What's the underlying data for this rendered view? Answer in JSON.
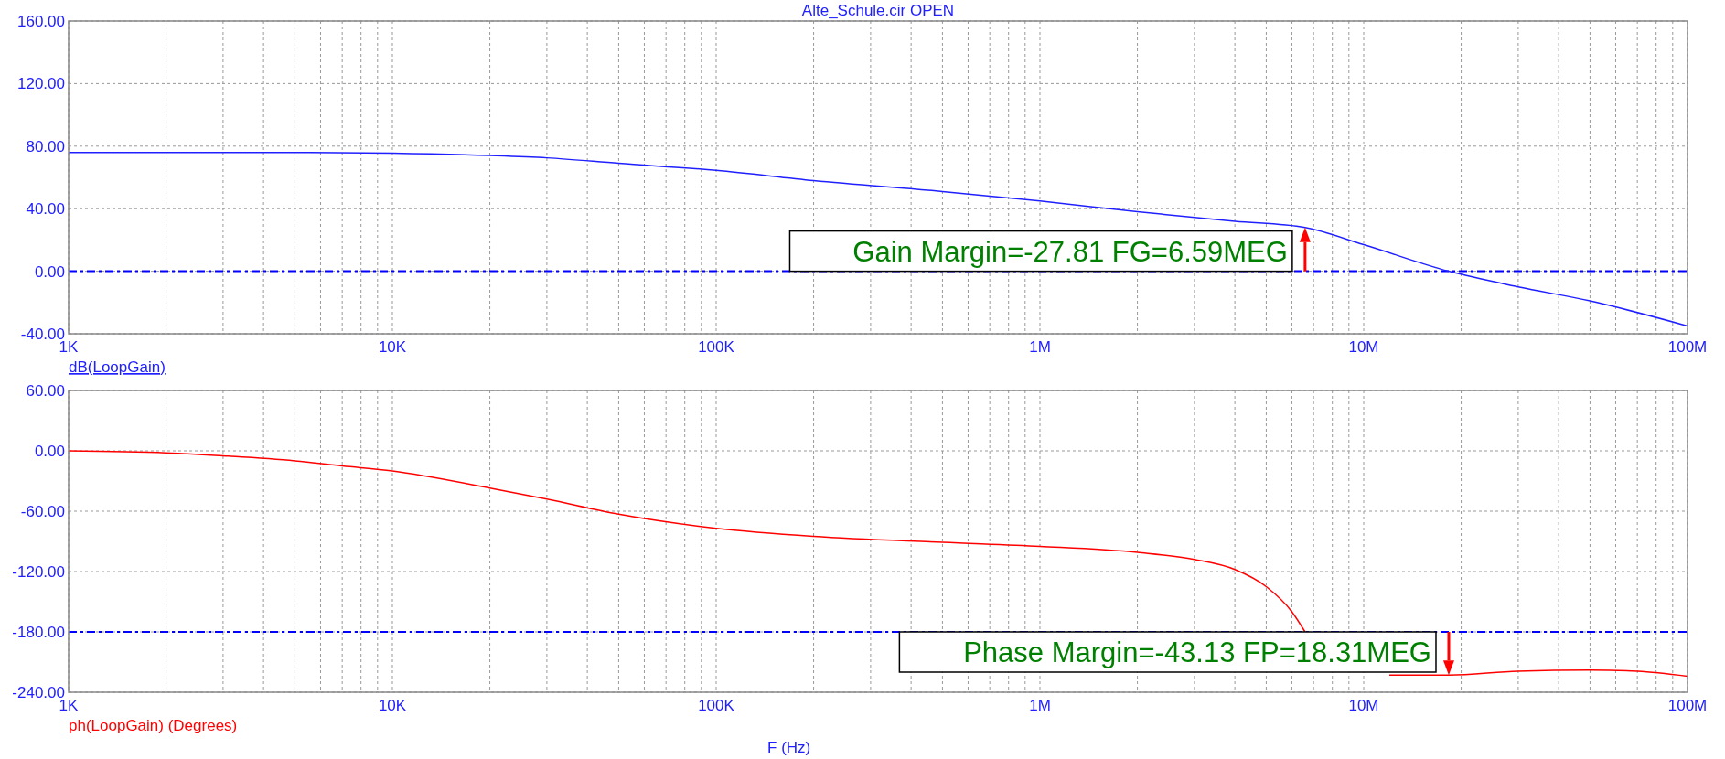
{
  "chart_data": [
    {
      "type": "line",
      "title": "Alte_Schule.cir OPEN",
      "log": "x",
      "grid": true,
      "xlim": [
        1000,
        100000000
      ],
      "ylim": [
        -40,
        160
      ],
      "xticks": [
        {
          "value": 1000,
          "label": "1K"
        },
        {
          "value": 10000,
          "label": "10K"
        },
        {
          "value": 100000,
          "label": "100K"
        },
        {
          "value": 1000000,
          "label": "1M"
        },
        {
          "value": 10000000,
          "label": "10M"
        },
        {
          "value": 100000000,
          "label": "100M"
        }
      ],
      "yticks": [
        {
          "value": -40,
          "label": "-40.00"
        },
        {
          "value": 0,
          "label": "0.00"
        },
        {
          "value": 40,
          "label": "40.00"
        },
        {
          "value": 80,
          "label": "80.00"
        },
        {
          "value": 120,
          "label": "120.00"
        },
        {
          "value": 160,
          "label": "160.00"
        }
      ],
      "x": [
        1000,
        2000,
        5000,
        10000,
        20000,
        30000,
        50000,
        100000,
        200000,
        500000,
        1000000,
        2000000,
        4000000,
        6590000,
        10000000,
        18300000,
        30000000,
        50000000,
        100000000
      ],
      "series": [
        {
          "name": "dB(LoopGain)",
          "color": "#2020ff",
          "values": [
            76,
            76,
            76,
            75.5,
            74,
            72.5,
            69,
            64.5,
            58,
            51,
            45,
            38,
            32,
            28,
            17,
            0,
            -10,
            -19,
            -35
          ]
        }
      ],
      "ref_lines": [
        {
          "axis": "y",
          "value": 0,
          "color": "#0000ff",
          "line_style": "dashed"
        }
      ],
      "annotations": [
        {
          "text": "Gain Margin=-27.81 FG=6.59MEG",
          "x": 6590000,
          "y": 28
        }
      ]
    },
    {
      "type": "line",
      "xlabel": "F (Hz)",
      "log": "x",
      "grid": true,
      "xlim": [
        1000,
        100000000
      ],
      "ylim": [
        -240,
        60
      ],
      "xticks": [
        {
          "value": 1000,
          "label": "1K"
        },
        {
          "value": 10000,
          "label": "10K"
        },
        {
          "value": 100000,
          "label": "100K"
        },
        {
          "value": 1000000,
          "label": "1M"
        },
        {
          "value": 10000000,
          "label": "10M"
        },
        {
          "value": 100000000,
          "label": "100M"
        }
      ],
      "yticks": [
        {
          "value": -240,
          "label": "-240.00"
        },
        {
          "value": -180,
          "label": "-180.00"
        },
        {
          "value": -120,
          "label": "-120.00"
        },
        {
          "value": -60,
          "label": "-60.00"
        },
        {
          "value": 0,
          "label": "0.00"
        },
        {
          "value": 60,
          "label": "60.00"
        }
      ],
      "x": [
        1000,
        2000,
        3000,
        5000,
        7000,
        10000,
        20000,
        30000,
        50000,
        100000,
        200000,
        500000,
        1000000,
        2000000,
        3000000,
        4000000,
        5000000,
        6000000,
        6590000,
        9000000,
        12000000,
        18310000,
        30000000,
        50000000,
        70000000,
        100000000
      ],
      "series": [
        {
          "name": "ph(LoopGain) (Degrees)",
          "color": "#ff0000",
          "values": [
            0,
            -2,
            -5,
            -10,
            -15,
            -20,
            -37,
            -48,
            -63,
            -77,
            -85,
            -91,
            -95,
            -101,
            -108,
            -118,
            -135,
            -160,
            -180,
            null,
            -223,
            -223,
            -219,
            -218,
            -219,
            -224
          ]
        }
      ],
      "ref_lines": [
        {
          "axis": "y",
          "value": -180,
          "color": "#0000ff",
          "line_style": "dashed"
        }
      ],
      "annotations": [
        {
          "text": "Phase Margin=-43.13 FP=18.31MEG",
          "x": 18310000,
          "y": -223
        }
      ]
    }
  ]
}
